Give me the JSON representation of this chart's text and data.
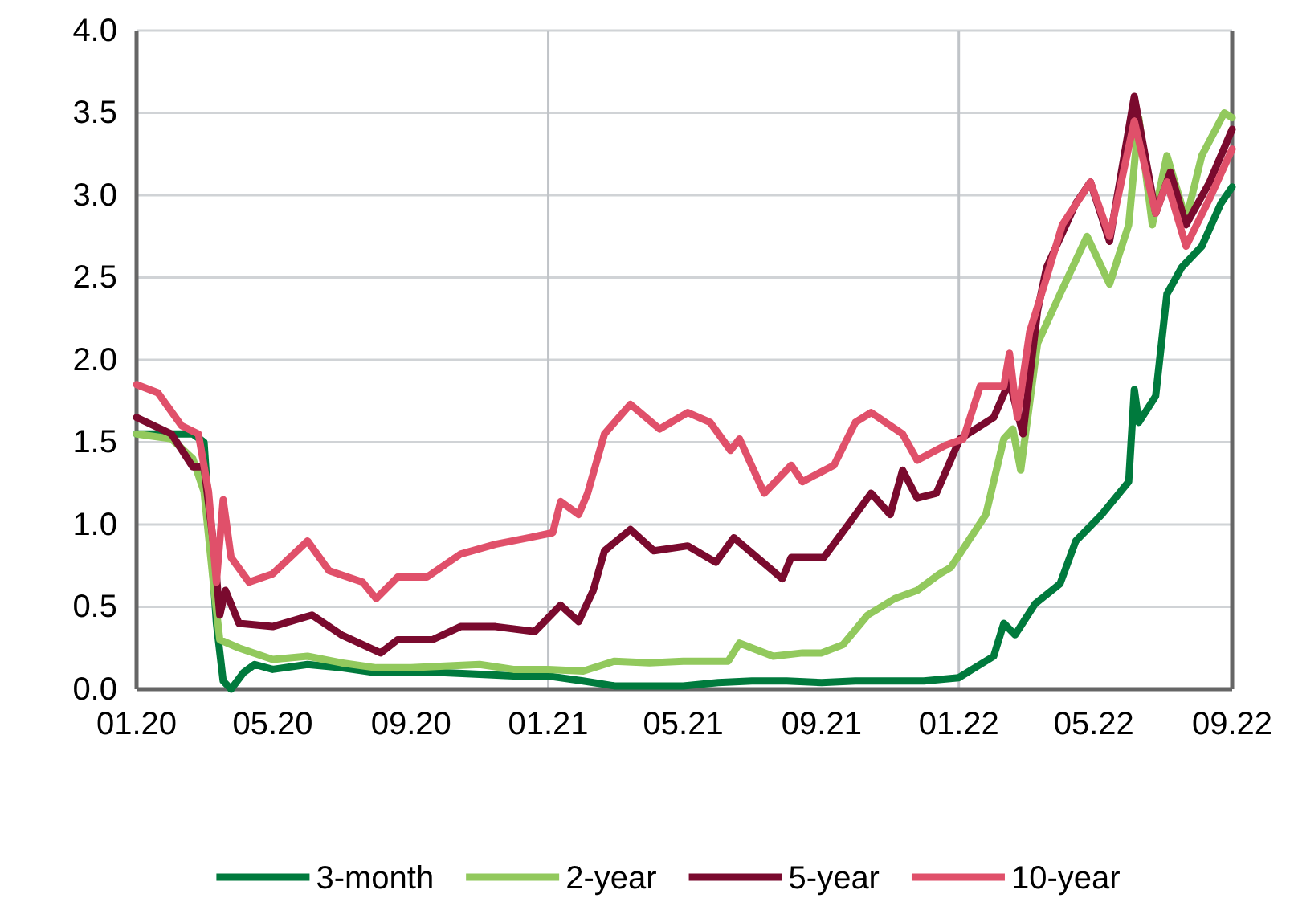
{
  "chart_data": {
    "type": "line",
    "xlim": [
      "2020-01-01",
      "2022-09-01"
    ],
    "ylim": [
      0,
      4
    ],
    "xticks": [
      {
        "value": "2020-01-01",
        "label": "01.20"
      },
      {
        "value": "2020-05-01",
        "label": "05.20"
      },
      {
        "value": "2020-09-01",
        "label": "09.20"
      },
      {
        "value": "2021-01-01",
        "label": "01.21"
      },
      {
        "value": "2021-05-01",
        "label": "05.21"
      },
      {
        "value": "2021-09-01",
        "label": "09.21"
      },
      {
        "value": "2022-01-01",
        "label": "01.22"
      },
      {
        "value": "2022-05-01",
        "label": "05.22"
      },
      {
        "value": "2022-09-01",
        "label": "09.22"
      }
    ],
    "yticks": [
      {
        "value": 0,
        "label": "0.0"
      },
      {
        "value": 0.5,
        "label": "0.5"
      },
      {
        "value": 1,
        "label": "1.0"
      },
      {
        "value": 1.5,
        "label": "1.5"
      },
      {
        "value": 2,
        "label": "2.0"
      },
      {
        "value": 2.5,
        "label": "2.5"
      },
      {
        "value": 3,
        "label": "3.0"
      },
      {
        "value": 3.5,
        "label": "3.5"
      },
      {
        "value": 4,
        "label": "4.0"
      }
    ],
    "grid": "y",
    "legend": "bottom",
    "line_style": "solid",
    "marker": "none",
    "ref_lines": [
      {
        "axis": "x",
        "value": "2021-01-01",
        "color": "#c0c4c8"
      },
      {
        "axis": "x",
        "value": "2022-01-01",
        "color": "#c0c4c8"
      }
    ],
    "series": [
      {
        "name": "3-month",
        "color": "#007a3d",
        "x": [
          "2020-01-01",
          "2020-02-01",
          "2020-02-20",
          "2020-03-01",
          "2020-03-12",
          "2020-03-18",
          "2020-03-25",
          "2020-04-05",
          "2020-04-15",
          "2020-05-01",
          "2020-06-01",
          "2020-07-01",
          "2020-08-01",
          "2020-09-01",
          "2020-10-01",
          "2020-11-01",
          "2020-12-01",
          "2021-01-01",
          "2021-02-01",
          "2021-03-01",
          "2021-04-01",
          "2021-05-01",
          "2021-06-01",
          "2021-07-01",
          "2021-08-01",
          "2021-09-01",
          "2021-10-01",
          "2021-11-01",
          "2021-12-01",
          "2022-01-01",
          "2022-02-01",
          "2022-02-10",
          "2022-02-20",
          "2022-03-10",
          "2022-04-01",
          "2022-04-15",
          "2022-05-08",
          "2022-06-01",
          "2022-06-06",
          "2022-06-10",
          "2022-06-25",
          "2022-07-05",
          "2022-07-18",
          "2022-08-05",
          "2022-08-22",
          "2022-09-01"
        ],
        "values": [
          1.55,
          1.55,
          1.55,
          1.5,
          0.4,
          0.05,
          0.0,
          0.1,
          0.15,
          0.12,
          0.15,
          0.13,
          0.1,
          0.1,
          0.1,
          0.09,
          0.08,
          0.08,
          0.05,
          0.02,
          0.02,
          0.02,
          0.04,
          0.05,
          0.05,
          0.04,
          0.05,
          0.05,
          0.05,
          0.07,
          0.2,
          0.4,
          0.33,
          0.52,
          0.64,
          0.9,
          1.06,
          1.26,
          1.82,
          1.62,
          1.78,
          2.4,
          2.56,
          2.69,
          2.95,
          3.05
        ]
      },
      {
        "name": "2-year",
        "color": "#92c95d",
        "x": [
          "2020-01-01",
          "2020-02-01",
          "2020-02-20",
          "2020-03-01",
          "2020-03-10",
          "2020-03-15",
          "2020-04-01",
          "2020-05-01",
          "2020-06-01",
          "2020-07-01",
          "2020-08-01",
          "2020-09-01",
          "2020-10-01",
          "2020-11-01",
          "2020-12-01",
          "2021-01-01",
          "2021-02-01",
          "2021-03-01",
          "2021-04-01",
          "2021-05-01",
          "2021-06-10",
          "2021-06-20",
          "2021-07-01",
          "2021-07-20",
          "2021-08-15",
          "2021-09-01",
          "2021-09-20",
          "2021-10-12",
          "2021-11-05",
          "2021-11-25",
          "2021-12-15",
          "2021-12-25",
          "2022-01-25",
          "2022-02-10",
          "2022-02-18",
          "2022-02-25",
          "2022-03-12",
          "2022-04-01",
          "2022-04-25",
          "2022-05-15",
          "2022-06-01",
          "2022-06-10",
          "2022-06-22",
          "2022-07-05",
          "2022-07-22",
          "2022-08-05",
          "2022-08-25",
          "2022-09-01"
        ],
        "values": [
          1.55,
          1.52,
          1.4,
          1.2,
          0.6,
          0.3,
          0.25,
          0.18,
          0.2,
          0.16,
          0.13,
          0.13,
          0.14,
          0.15,
          0.12,
          0.12,
          0.11,
          0.17,
          0.16,
          0.17,
          0.17,
          0.28,
          0.25,
          0.2,
          0.22,
          0.22,
          0.27,
          0.45,
          0.55,
          0.6,
          0.7,
          0.74,
          1.06,
          1.52,
          1.58,
          1.33,
          2.1,
          2.4,
          2.75,
          2.46,
          2.82,
          3.47,
          2.82,
          3.24,
          2.85,
          3.24,
          3.5,
          3.47
        ]
      },
      {
        "name": "5-year",
        "color": "#7a0a2e",
        "x": [
          "2020-01-01",
          "2020-02-01",
          "2020-02-20",
          "2020-03-01",
          "2020-03-10",
          "2020-03-15",
          "2020-03-20",
          "2020-04-01",
          "2020-05-01",
          "2020-06-05",
          "2020-07-01",
          "2020-08-05",
          "2020-08-20",
          "2020-09-20",
          "2020-10-15",
          "2020-11-15",
          "2020-12-20",
          "2021-01-12",
          "2021-01-28",
          "2021-02-10",
          "2021-02-20",
          "2021-03-15",
          "2021-04-05",
          "2021-05-05",
          "2021-05-30",
          "2021-06-15",
          "2021-07-28",
          "2021-08-05",
          "2021-09-03",
          "2021-09-28",
          "2021-10-15",
          "2021-11-01",
          "2021-11-12",
          "2021-11-25",
          "2021-12-12",
          "2022-01-02",
          "2022-02-01",
          "2022-02-15",
          "2022-02-27",
          "2022-03-12",
          "2022-03-20",
          "2022-04-15",
          "2022-04-28",
          "2022-05-15",
          "2022-06-06",
          "2022-06-25",
          "2022-07-08",
          "2022-07-22",
          "2022-08-12",
          "2022-09-01"
        ],
        "values": [
          1.65,
          1.55,
          1.35,
          1.35,
          0.85,
          0.45,
          0.6,
          0.4,
          0.38,
          0.45,
          0.33,
          0.22,
          0.3,
          0.3,
          0.38,
          0.38,
          0.35,
          0.51,
          0.41,
          0.6,
          0.84,
          0.97,
          0.84,
          0.87,
          0.77,
          0.92,
          0.67,
          0.8,
          0.8,
          1.03,
          1.19,
          1.06,
          1.33,
          1.16,
          1.19,
          1.52,
          1.65,
          1.87,
          1.55,
          2.3,
          2.56,
          2.95,
          3.08,
          2.72,
          3.6,
          2.89,
          3.14,
          2.82,
          3.08,
          3.4
        ]
      },
      {
        "name": "10-year",
        "color": "#e0506a",
        "x": [
          "2020-01-01",
          "2020-01-20",
          "2020-02-10",
          "2020-02-25",
          "2020-03-05",
          "2020-03-12",
          "2020-03-18",
          "2020-03-25",
          "2020-04-10",
          "2020-05-01",
          "2020-06-01",
          "2020-06-20",
          "2020-07-20",
          "2020-08-01",
          "2020-08-20",
          "2020-09-15",
          "2020-10-15",
          "2020-11-15",
          "2020-12-15",
          "2021-01-05",
          "2021-01-12",
          "2021-01-28",
          "2021-02-05",
          "2021-02-20",
          "2021-03-15",
          "2021-04-10",
          "2021-05-05",
          "2021-05-25",
          "2021-06-12",
          "2021-06-20",
          "2021-07-12",
          "2021-08-05",
          "2021-08-15",
          "2021-09-12",
          "2021-10-01",
          "2021-10-15",
          "2021-11-12",
          "2021-11-25",
          "2021-12-20",
          "2022-01-05",
          "2022-01-20",
          "2022-02-10",
          "2022-02-15",
          "2022-02-22",
          "2022-03-05",
          "2022-03-20",
          "2022-04-03",
          "2022-04-28",
          "2022-05-15",
          "2022-06-06",
          "2022-06-25",
          "2022-07-05",
          "2022-07-22",
          "2022-08-12",
          "2022-09-01"
        ],
        "values": [
          1.85,
          1.8,
          1.6,
          1.55,
          1.2,
          0.65,
          1.15,
          0.8,
          0.65,
          0.7,
          0.9,
          0.72,
          0.65,
          0.55,
          0.68,
          0.68,
          0.82,
          0.88,
          0.92,
          0.95,
          1.14,
          1.06,
          1.19,
          1.55,
          1.73,
          1.58,
          1.68,
          1.62,
          1.45,
          1.52,
          1.19,
          1.36,
          1.26,
          1.36,
          1.62,
          1.68,
          1.55,
          1.39,
          1.48,
          1.52,
          1.84,
          1.84,
          2.04,
          1.65,
          2.17,
          2.5,
          2.82,
          3.08,
          2.75,
          3.45,
          2.89,
          3.08,
          2.69,
          2.98,
          3.28
        ]
      }
    ]
  }
}
